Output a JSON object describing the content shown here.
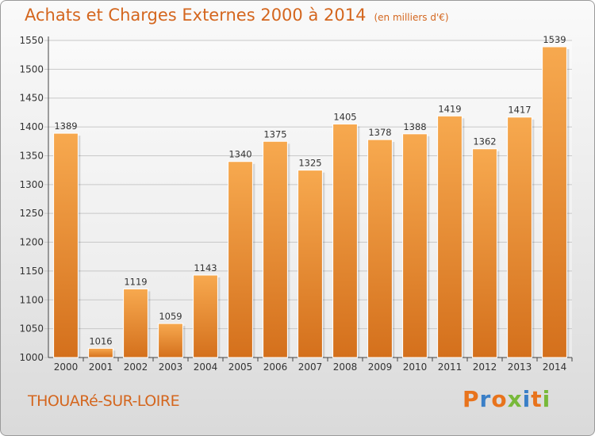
{
  "header": {
    "title": "Achats et Charges Externes 2000 à 2014",
    "unit": "(en milliers d'€)"
  },
  "footer": {
    "commune": "THOUARé-SUR-LOIRE",
    "brand_letters": [
      "P",
      "r",
      "o",
      "x",
      "i",
      "t",
      "i"
    ]
  },
  "colors": {
    "bar_top": "#f7a94f",
    "bar_bottom": "#d4701c",
    "title": "#d4661e",
    "brand": [
      "#e8731c",
      "#3a7fc7",
      "#e8731c",
      "#78b93a",
      "#3a7fc7",
      "#e8731c",
      "#78b93a"
    ]
  },
  "chart_data": {
    "type": "bar",
    "title": "Achats et Charges Externes 2000 à 2014",
    "subtitle": "(en milliers d'€)",
    "categories": [
      "2000",
      "2001",
      "2002",
      "2003",
      "2004",
      "2005",
      "2006",
      "2007",
      "2008",
      "2009",
      "2010",
      "2011",
      "2012",
      "2013",
      "2014"
    ],
    "values": [
      1389,
      1016,
      1119,
      1059,
      1143,
      1340,
      1375,
      1325,
      1405,
      1378,
      1388,
      1419,
      1362,
      1417,
      1539
    ],
    "ylim": [
      1000,
      1550
    ],
    "yticks": [
      1000,
      1050,
      1100,
      1150,
      1200,
      1250,
      1300,
      1350,
      1400,
      1450,
      1500,
      1550
    ],
    "grid": true,
    "data_labels": true
  }
}
